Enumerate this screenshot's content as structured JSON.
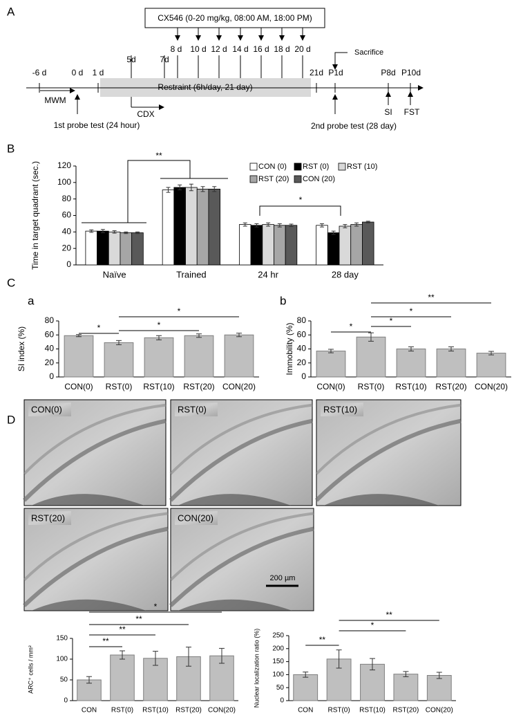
{
  "panel_labels": [
    "A",
    "B",
    "C",
    "D"
  ],
  "timeline": {
    "treatment": "CX546 (0-20 mg/kg, 08:00 AM, 18:00 PM)",
    "days": [
      "-6 d",
      "0 d",
      "1 d",
      "5d",
      "7d",
      "8 d",
      "10 d",
      "12 d",
      "14 d",
      "16 d",
      "18 d",
      "20 d",
      "21d",
      "P1d",
      "P8d",
      "P10d"
    ],
    "restraint": "Restraint (6h/day, 21 day)",
    "mwm": "MWM",
    "cdx": "CDX",
    "probe1": "1st probe test (24 hour)",
    "sacrifice": "Sacrifice",
    "probe2": "2nd probe test (28 day)",
    "si": "SI",
    "fst": "FST"
  },
  "images": {
    "labels": [
      "CON(0)",
      "RST(0)",
      "RST(10)",
      "RST(20)",
      "CON(20)"
    ],
    "scale_bar": "200 µm"
  },
  "chart_data": [
    {
      "type": "grouped-bar",
      "y_label": "Time in target quadrant (sec.)",
      "categories": [
        "Naïve",
        "Trained",
        "24 hr",
        "28 day"
      ],
      "series": [
        {
          "name": "CON (0)",
          "color": "#ffffff",
          "values": [
            41,
            91,
            49,
            48
          ],
          "errors": [
            1.5,
            3,
            2,
            2
          ]
        },
        {
          "name": "RST (0)",
          "color": "#000000",
          "values": [
            41,
            94,
            48,
            39
          ],
          "errors": [
            2,
            3,
            2,
            2
          ]
        },
        {
          "name": "RST (10)",
          "color": "#d9d9d9",
          "values": [
            40,
            94,
            49,
            47
          ],
          "errors": [
            1.5,
            4,
            2,
            2
          ]
        },
        {
          "name": "RST (20)",
          "color": "#a6a6a6",
          "values": [
            39,
            92,
            48,
            49
          ],
          "errors": [
            1,
            3,
            2,
            2
          ]
        },
        {
          "name": "CON (20)",
          "color": "#595959",
          "values": [
            39,
            92,
            48,
            52
          ],
          "errors": [
            1,
            3,
            1.5,
            1
          ]
        }
      ],
      "ylim": [
        0,
        120
      ],
      "yticks": [
        0,
        20,
        40,
        60,
        80,
        100,
        120
      ],
      "annotations": [
        "**",
        "*"
      ]
    },
    {
      "type": "bar",
      "label": "a",
      "y_label": "SI index (%)",
      "categories": [
        "CON(0)",
        "RST(0)",
        "RST(10)",
        "RST(20)",
        "CON(20)"
      ],
      "values": [
        59,
        49,
        56,
        59,
        60
      ],
      "errors": [
        1.5,
        3,
        3,
        2.5,
        2.5
      ],
      "color": "#bfbfbf",
      "ylim": [
        0,
        80
      ],
      "yticks": [
        0,
        20,
        40,
        60,
        80
      ],
      "annotations": [
        "*",
        "*",
        "*"
      ]
    },
    {
      "type": "bar",
      "label": "b",
      "y_label": "Immobility (%)",
      "categories": [
        "CON(0)",
        "RST(0)",
        "RST(10)",
        "RST(20)",
        "CON(20)"
      ],
      "values": [
        37,
        57,
        40,
        40,
        34
      ],
      "errors": [
        2.5,
        6,
        3,
        3,
        2.5
      ],
      "color": "#bfbfbf",
      "ylim": [
        0,
        80
      ],
      "yticks": [
        0,
        20,
        40,
        60,
        80
      ],
      "annotations": [
        "**",
        "*",
        "*",
        "*"
      ]
    },
    {
      "type": "bar",
      "y_label": "ARC⁺ cells / mm²",
      "categories": [
        "CON",
        "RST(0)",
        "RST(10)",
        "RST(20)",
        "CON(20)"
      ],
      "values": [
        50,
        110,
        102,
        106,
        108
      ],
      "errors": [
        8,
        10,
        17,
        23,
        18
      ],
      "color": "#bfbfbf",
      "ylim": [
        0,
        150
      ],
      "yticks": [
        0,
        50,
        100,
        150
      ],
      "annotations": [
        "*",
        "**",
        "**",
        "**"
      ]
    },
    {
      "type": "bar",
      "y_label": "Nuclear localization ratio (%)",
      "categories": [
        "CON",
        "RST(0)",
        "RST(10)",
        "RST(20)",
        "CON(20)"
      ],
      "values": [
        100,
        160,
        140,
        102,
        97
      ],
      "errors": [
        10,
        35,
        22,
        10,
        12
      ],
      "color": "#bfbfbf",
      "ylim": [
        0,
        250
      ],
      "yticks": [
        0,
        50,
        100,
        150,
        200,
        250
      ],
      "annotations": [
        "**",
        "*",
        "**"
      ]
    }
  ]
}
